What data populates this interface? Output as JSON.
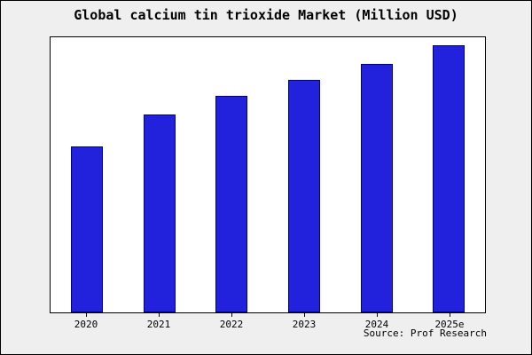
{
  "title": "Global calcium tin trioxide Market (Million USD)",
  "source": "Source: Prof Research",
  "colors": {
    "bar_fill": "#2222dd",
    "bar_border": "#000080",
    "background": "#efefef",
    "plot_background": "#ffffff",
    "axis": "#000000"
  },
  "chart_data": {
    "type": "bar",
    "categories": [
      "2020",
      "2021",
      "2022",
      "2023",
      "2024",
      "2025e"
    ],
    "values": [
      62,
      74,
      81,
      87,
      93,
      100
    ],
    "title": "Global calcium tin trioxide Market (Million USD)",
    "xlabel": "",
    "ylabel": "",
    "ylim": [
      0,
      103
    ],
    "grid": false,
    "legend": false,
    "y_axis_labels_visible": false,
    "annotation": "Source: Prof Research"
  }
}
